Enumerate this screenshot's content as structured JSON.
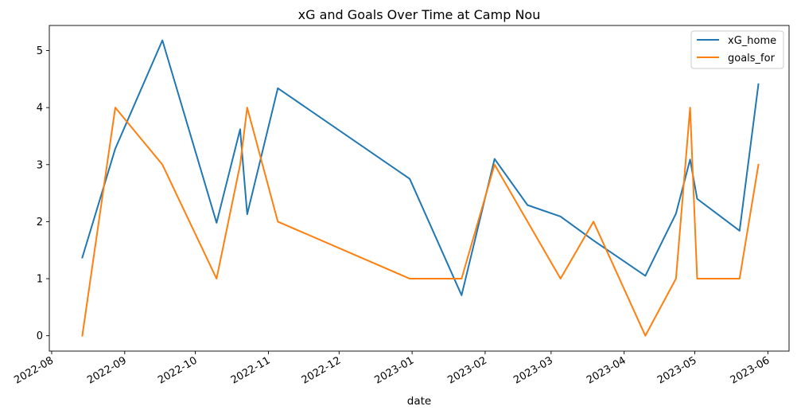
{
  "chart_data": {
    "type": "line",
    "title": "xG and Goals Over Time at Camp Nou",
    "xlabel": "date",
    "ylabel": "",
    "x": [
      "2022-08-14",
      "2022-08-28",
      "2022-09-17",
      "2022-10-10",
      "2022-10-20",
      "2022-10-23",
      "2022-11-05",
      "2022-12-31",
      "2023-01-22",
      "2023-02-05",
      "2023-02-19",
      "2023-03-05",
      "2023-03-19",
      "2023-04-10",
      "2023-04-23",
      "2023-04-29",
      "2023-05-02",
      "2023-05-20",
      "2023-05-28"
    ],
    "series": [
      {
        "name": "xG_home",
        "color": "#1f77b4",
        "values": [
          1.37,
          3.28,
          5.18,
          1.98,
          3.62,
          2.13,
          4.34,
          2.75,
          0.71,
          3.1,
          2.29,
          2.09,
          1.67,
          1.05,
          2.14,
          3.09,
          2.4,
          1.84,
          4.41
        ]
      },
      {
        "name": "goals_for",
        "color": "#ff7f0e",
        "values": [
          0,
          4,
          3,
          1,
          3,
          4,
          2,
          1,
          1,
          3,
          2,
          1,
          2,
          0,
          1,
          4,
          1,
          1,
          3
        ]
      }
    ],
    "xticks": [
      "2022-08",
      "2022-09",
      "2022-10",
      "2022-11",
      "2022-12",
      "2023-01",
      "2023-02",
      "2023-03",
      "2023-04",
      "2023-05",
      "2023-06"
    ],
    "yticks": [
      "0",
      "1",
      "2",
      "3",
      "4",
      "5"
    ],
    "xlim": [
      "2022-07-31",
      "2023-06-10"
    ],
    "ylim": [
      -0.27,
      5.44
    ],
    "grid": false,
    "legend": "top-right"
  }
}
